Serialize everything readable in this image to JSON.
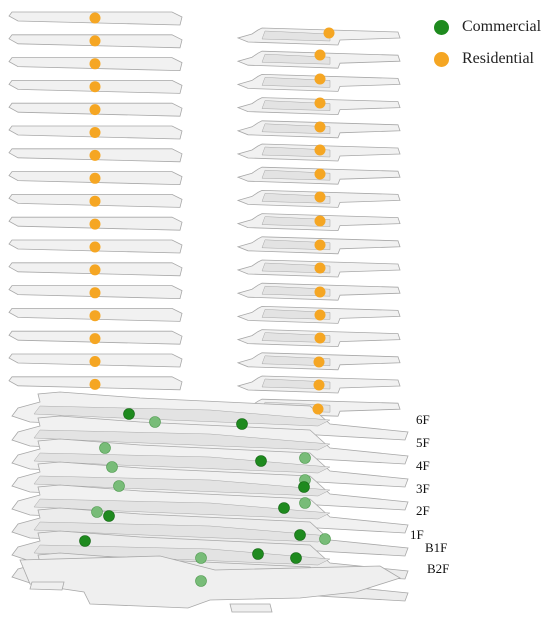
{
  "legend": {
    "items": [
      {
        "label": "Commercial",
        "color": "#1e8a1e"
      },
      {
        "label": "Residential",
        "color": "#f5a623"
      }
    ]
  },
  "floor_labels": [
    "6F",
    "5F",
    "4F",
    "3F",
    "2F",
    "1F",
    "B1F",
    "B2F"
  ],
  "colors": {
    "commercial": "#1e8a1e",
    "commercial_faded": "#78bc78",
    "residential": "#f5a623",
    "slab_fill": "#f1f1f1",
    "slab_fill_dark": "#e3e3e3",
    "slab_stroke": "#a8a8a8"
  }
}
